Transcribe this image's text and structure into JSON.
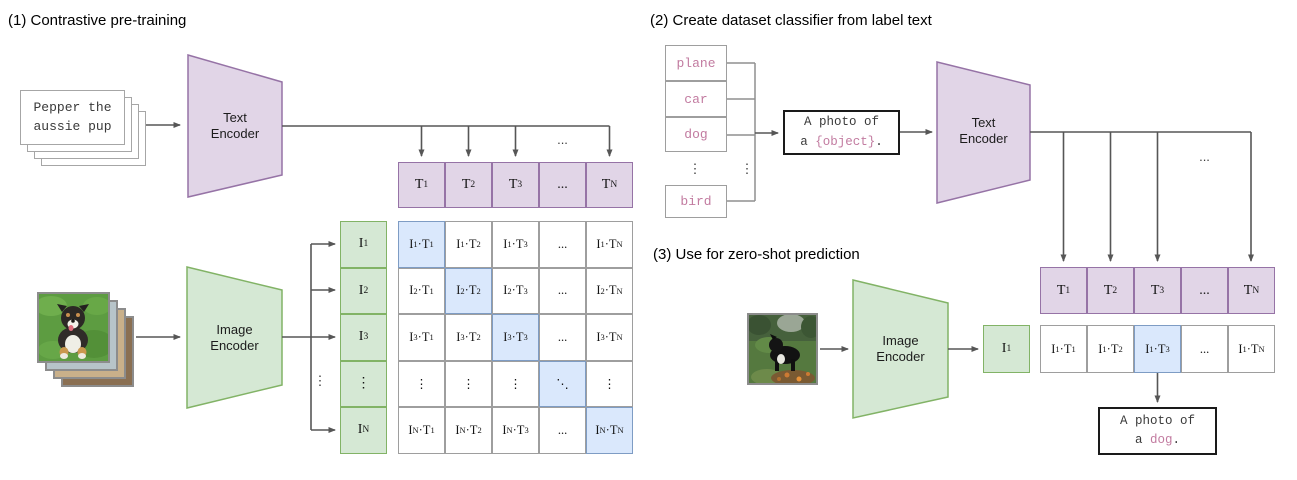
{
  "colors": {
    "purple_fill": "#E1D5E7",
    "purple_stroke": "#9673A6",
    "green_fill": "#D5E8D4",
    "green_stroke": "#82B366",
    "blue_fill": "#DAE8FC",
    "blue_stroke": "#7E9CC4",
    "cell_stroke": "#9e9e9e",
    "arrow": "#565656",
    "connector": "#8f8f8f",
    "pink": "#C27BA0"
  },
  "panel1": {
    "title": "(1) Contrastive pre-training",
    "input_text": "Pepper the\naussie pup",
    "text_encoder_label": "Text\nEncoder",
    "image_encoder_label": "Image\nEncoder",
    "ellipsis": "...",
    "vdots": "⋮",
    "t_header": [
      "T_1",
      "T_2",
      "T_3",
      "...",
      "T_N"
    ],
    "i_labels": [
      "I_1",
      "I_2",
      "I_3",
      "⋮",
      "I_N"
    ],
    "matrix": [
      [
        {
          "t": "I_1·T_1",
          "hl": true
        },
        {
          "t": "I_1·T_2"
        },
        {
          "t": "I_1·T_3"
        },
        {
          "t": "..."
        },
        {
          "t": "I_1·T_N"
        }
      ],
      [
        {
          "t": "I_2·T_1"
        },
        {
          "t": "I_2·T_2",
          "hl": true
        },
        {
          "t": "I_2·T_3"
        },
        {
          "t": "..."
        },
        {
          "t": "I_2·T_N"
        }
      ],
      [
        {
          "t": "I_3·T_1"
        },
        {
          "t": "I_3·T_2"
        },
        {
          "t": "I_3·T_3",
          "hl": true
        },
        {
          "t": "..."
        },
        {
          "t": "I_3·T_N"
        }
      ],
      [
        {
          "t": "⋮"
        },
        {
          "t": "⋮"
        },
        {
          "t": "⋮"
        },
        {
          "t": "⋱",
          "hl": true
        },
        {
          "t": "⋮"
        }
      ],
      [
        {
          "t": "I_N·T_1"
        },
        {
          "t": "I_N·T_2"
        },
        {
          "t": "I_N·T_3"
        },
        {
          "t": "..."
        },
        {
          "t": "I_N·T_N",
          "hl": true
        }
      ]
    ]
  },
  "panel2": {
    "title": "(2) Create dataset classifier from label text",
    "labels": [
      "plane",
      "car",
      "dog"
    ],
    "label_last": "bird",
    "vdots": "⋮",
    "prompt_line1": [
      [
        "A photo of",
        "dark"
      ]
    ],
    "prompt_line2": [
      [
        "a ",
        "dark"
      ],
      [
        "{object}",
        "pink"
      ],
      [
        ".",
        "dark"
      ]
    ],
    "text_encoder_label": "Text\nEncoder",
    "ellipsis": "...",
    "t_header": [
      "T_1",
      "T_2",
      "T_3",
      "...",
      "T_N"
    ]
  },
  "panel3": {
    "title": "(3) Use for zero-shot prediction",
    "image_encoder_label": "Image\nEncoder",
    "i_label": "I_1",
    "row": [
      {
        "t": "I_1·T_1"
      },
      {
        "t": "I_1·T_2"
      },
      {
        "t": "I_1·T_3",
        "hl": true
      },
      {
        "t": "..."
      },
      {
        "t": "I_1·T_N"
      }
    ],
    "prompt_line1": [
      [
        "A photo of",
        "dark"
      ]
    ],
    "prompt_line2": [
      [
        "a ",
        "dark"
      ],
      [
        "dog",
        "pink"
      ],
      [
        ".",
        "dark"
      ]
    ]
  }
}
